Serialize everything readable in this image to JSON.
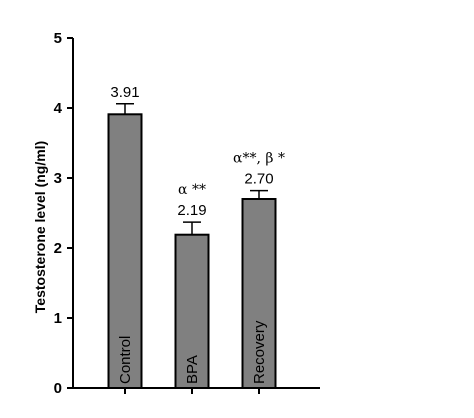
{
  "chart_data": {
    "type": "bar",
    "categories": [
      "Control",
      "BPA",
      "Recovery"
    ],
    "values": [
      3.91,
      2.19,
      2.7
    ],
    "errors": [
      0.15,
      0.18,
      0.12
    ],
    "value_labels": [
      "3.91",
      "2.19",
      "2.70"
    ],
    "significance_labels": [
      "",
      "α **",
      "α**, β *"
    ],
    "ylabel": "Testosterone level (ng/ml)",
    "xlabel": "",
    "title": "",
    "ylim": [
      0,
      5
    ],
    "yticks": [
      0,
      1,
      2,
      3,
      4,
      5
    ],
    "ytick_labels": [
      "0",
      "1",
      "2",
      "3",
      "4",
      "5"
    ],
    "grid": false,
    "legend": "none",
    "colors": {
      "bar_fill": "#808080",
      "bar_edge": "#000000",
      "axis": "#000000",
      "background": "#ffffff"
    }
  }
}
